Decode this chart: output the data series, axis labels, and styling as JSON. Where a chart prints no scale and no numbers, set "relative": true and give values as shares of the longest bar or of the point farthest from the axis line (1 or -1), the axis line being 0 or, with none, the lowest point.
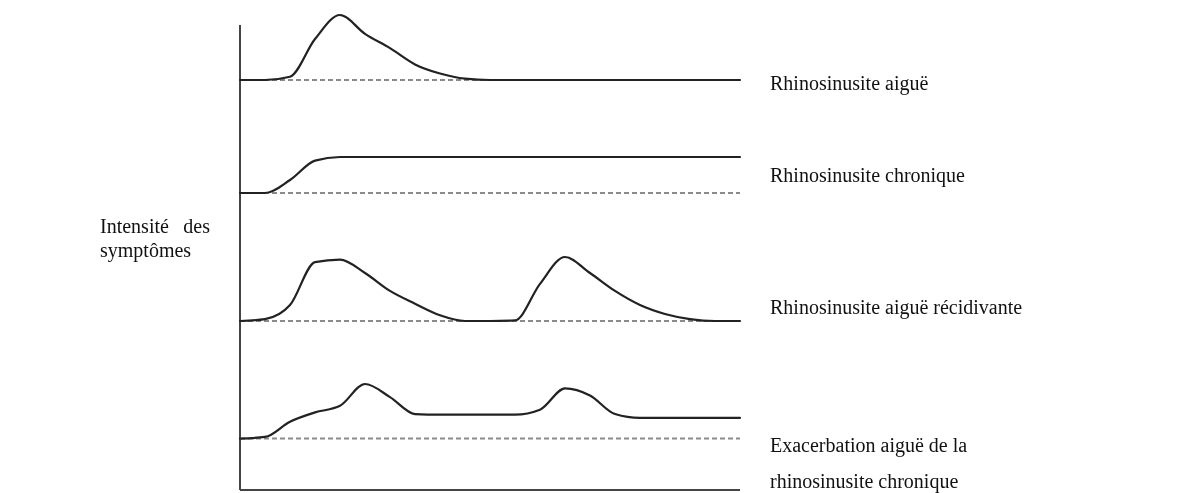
{
  "chart_data": [
    {
      "type": "line",
      "relative": true,
      "marker": "none",
      "line_style": "solid",
      "categories": [
        null,
        null,
        null,
        null,
        null,
        null,
        null,
        null,
        null,
        null,
        null,
        null,
        null,
        null,
        null,
        null,
        null,
        null,
        null,
        null,
        null
      ],
      "series": [
        {
          "name": "Rhinosinusite aiguë",
          "color": "#222222",
          "values": [
            0,
            0,
            0.05,
            0.63,
            1,
            0.71,
            0.49,
            0.24,
            0.1,
            0.02,
            0,
            0,
            0,
            0,
            0,
            0,
            0,
            0,
            0,
            0,
            0
          ]
        }
      ],
      "ref_lines": [
        {
          "axis": "y",
          "value": 0,
          "color": "#8a8a8a",
          "line_style": "dashed"
        }
      ]
    },
    {
      "type": "line",
      "relative": true,
      "marker": "none",
      "line_style": "solid",
      "categories": [
        null,
        null,
        null,
        null,
        null,
        null,
        null,
        null,
        null,
        null,
        null,
        null,
        null,
        null,
        null,
        null,
        null,
        null,
        null,
        null,
        null
      ],
      "series": [
        {
          "name": "Rhinosinusite chronique",
          "color": "#222222",
          "values": [
            0,
            0,
            0.36,
            0.9,
            1,
            1,
            1,
            1,
            1,
            1,
            1,
            1,
            1,
            1,
            1,
            1,
            1,
            1,
            1,
            1,
            1
          ]
        }
      ],
      "ref_lines": [
        {
          "axis": "y",
          "value": 0,
          "color": "#8a8a8a",
          "line_style": "dashed"
        }
      ]
    },
    {
      "type": "line",
      "ylabel": "Intensité des symptômes",
      "relative": true,
      "marker": "none",
      "line_style": "solid",
      "categories": [
        null,
        null,
        null,
        null,
        null,
        null,
        null,
        null,
        null,
        null,
        null,
        null,
        null,
        null,
        null,
        null,
        null,
        null,
        null,
        null,
        null
      ],
      "series": [
        {
          "name": "Rhinosinusite aiguë récidivante",
          "color": "#222222",
          "values": [
            0,
            0.03,
            0.25,
            0.92,
            0.96,
            0.75,
            0.47,
            0.27,
            0.09,
            0,
            0,
            0.01,
            0.58,
            1,
            0.75,
            0.47,
            0.25,
            0.11,
            0.03,
            0,
            0
          ]
        }
      ],
      "ref_lines": [
        {
          "axis": "y",
          "value": 0,
          "color": "#8a8a8a",
          "line_style": "dashed"
        }
      ]
    },
    {
      "type": "line",
      "relative": true,
      "marker": "none",
      "line_style": "solid",
      "categories": [
        null,
        null,
        null,
        null,
        null,
        null,
        null,
        null,
        null,
        null,
        null,
        null,
        null,
        null,
        null,
        null,
        null,
        null,
        null,
        null,
        null
      ],
      "series": [
        {
          "name": "Exacerbation aiguë de la rhinosinusite chronique",
          "color": "#222222",
          "values": [
            0,
            0.03,
            0.31,
            0.48,
            0.6,
            1,
            0.76,
            0.45,
            0.44,
            0.44,
            0.44,
            0.44,
            0.53,
            0.92,
            0.79,
            0.45,
            0.38,
            0.38,
            0.38,
            0.38,
            0.38
          ]
        }
      ],
      "ref_lines": [
        {
          "axis": "y",
          "value": 0,
          "color": "#8a8a8a",
          "line_style": "dashed"
        }
      ]
    }
  ]
}
